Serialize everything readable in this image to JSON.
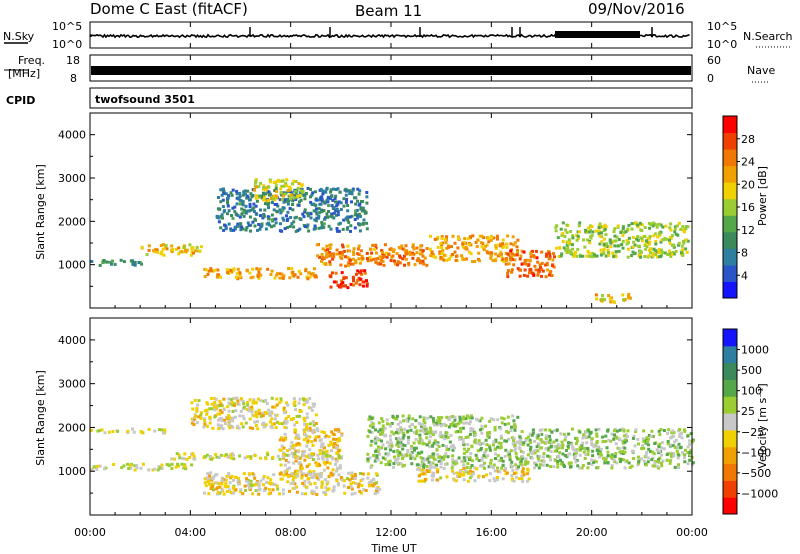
{
  "header": {
    "station": "Dome C East (fitACF)",
    "beam": "Beam 11",
    "date": "09/Nov/2016"
  },
  "strips": {
    "nsky": {
      "label": "N.Sky",
      "left_ticks": [
        "10^5",
        "10^0"
      ],
      "right_ticks": [
        "10^5",
        "10^0"
      ],
      "right_label": "N.Search"
    },
    "freq": {
      "label_1": "Freq.",
      "label_2": "[MHz]",
      "left_ticks": [
        "18",
        "8"
      ],
      "right_ticks": [
        "60",
        "0"
      ],
      "right_label": "Nave"
    },
    "cpid": {
      "label": "CPID",
      "value": "twofsound 3501"
    }
  },
  "panels": {
    "power": {
      "ylabel": "Slant Range [km]",
      "colorbar_label": "Power [dB]"
    },
    "velocity": {
      "ylabel": "Slant Range [km]",
      "colorbar_label": "Velocity  [m s⁻¹]"
    }
  },
  "x_axis": {
    "label": "Time UT",
    "ticks": [
      "00:00",
      "04:00",
      "08:00",
      "12:00",
      "16:00",
      "20:00",
      "00:00"
    ]
  },
  "chart_data": [
    {
      "type": "heatmap",
      "name": "power",
      "x_unit": "hours UT",
      "xlim": [
        0,
        24
      ],
      "ylim": [
        0,
        4500
      ],
      "yticks": [
        1000,
        2000,
        3000,
        4000
      ],
      "colorbar": {
        "label": "Power [dB]",
        "range": [
          0,
          32
        ],
        "ticks": [
          "4",
          "8",
          "12",
          "16",
          "20",
          "24",
          "28"
        ],
        "colors": [
          "#1414ff",
          "#2a55c8",
          "#2e7f9f",
          "#3a8a5c",
          "#55a84a",
          "#9acd32",
          "#f0d000",
          "#f0a000",
          "#f07800",
          "#f04000",
          "#ff0000"
        ]
      },
      "features": [
        {
          "t": [
            0.0,
            2.0
          ],
          "range": [
            1000,
            1150
          ],
          "value": 10
        },
        {
          "t": [
            2.0,
            4.5
          ],
          "range": [
            1250,
            1500
          ],
          "value": 20
        },
        {
          "t": [
            4.5,
            9.0
          ],
          "range": [
            700,
            950
          ],
          "value": 22
        },
        {
          "t": [
            9.5,
            11.0
          ],
          "range": [
            500,
            900
          ],
          "value": 28
        },
        {
          "t": [
            9.0,
            13.5
          ],
          "range": [
            1000,
            1500
          ],
          "value": 24
        },
        {
          "t": [
            13.5,
            17.0
          ],
          "range": [
            1100,
            1700
          ],
          "value": 22
        },
        {
          "t": [
            16.5,
            18.5
          ],
          "range": [
            750,
            1350
          ],
          "value": 26
        },
        {
          "t": [
            18.5,
            23.8
          ],
          "range": [
            1200,
            2000
          ],
          "value": 16
        },
        {
          "t": [
            5.0,
            11.0
          ],
          "range": [
            1800,
            2800
          ],
          "value": 8
        },
        {
          "t": [
            6.5,
            8.5
          ],
          "range": [
            2500,
            3000
          ],
          "value": 18
        },
        {
          "t": [
            20.0,
            21.5
          ],
          "range": [
            150,
            350
          ],
          "value": 20
        }
      ]
    },
    {
      "type": "heatmap",
      "name": "velocity",
      "x_unit": "hours UT",
      "xlim": [
        0,
        24
      ],
      "ylim": [
        0,
        4500
      ],
      "yticks": [
        1000,
        2000,
        3000,
        4000
      ],
      "colorbar": {
        "label": "Velocity  [m s⁻¹]",
        "range": [
          -1250,
          1250
        ],
        "ticks": [
          "1000",
          "500",
          "100",
          "25",
          "−25",
          "−100",
          "−500",
          "−1000"
        ],
        "colors": [
          "#ff0000",
          "#f04000",
          "#f07800",
          "#f0a000",
          "#f0d000",
          "#c8c8c8",
          "#9acd32",
          "#55a84a",
          "#3a8a5c",
          "#2e7f9f",
          "#1414ff"
        ]
      },
      "features": [
        {
          "t": [
            0.0,
            4.0
          ],
          "range": [
            1050,
            1200
          ],
          "value": 0
        },
        {
          "t": [
            4.5,
            11.5
          ],
          "range": [
            500,
            1000
          ],
          "value": -150
        },
        {
          "t": [
            7.5,
            10.0
          ],
          "range": [
            900,
            2000
          ],
          "value": -200
        },
        {
          "t": [
            3.0,
            10.0
          ],
          "range": [
            1300,
            1450
          ],
          "value": 0
        },
        {
          "t": [
            11.0,
            17.0
          ],
          "range": [
            1100,
            2300
          ],
          "value": 200
        },
        {
          "t": [
            13.0,
            17.5
          ],
          "range": [
            800,
            1100
          ],
          "value": -150
        },
        {
          "t": [
            17.0,
            24.0
          ],
          "range": [
            1100,
            2000
          ],
          "value": 200
        },
        {
          "t": [
            4.0,
            9.0
          ],
          "range": [
            2000,
            2700
          ],
          "value": -120
        },
        {
          "t": [
            0.0,
            3.0
          ],
          "range": [
            1900,
            2000
          ],
          "value": 0
        }
      ]
    }
  ]
}
